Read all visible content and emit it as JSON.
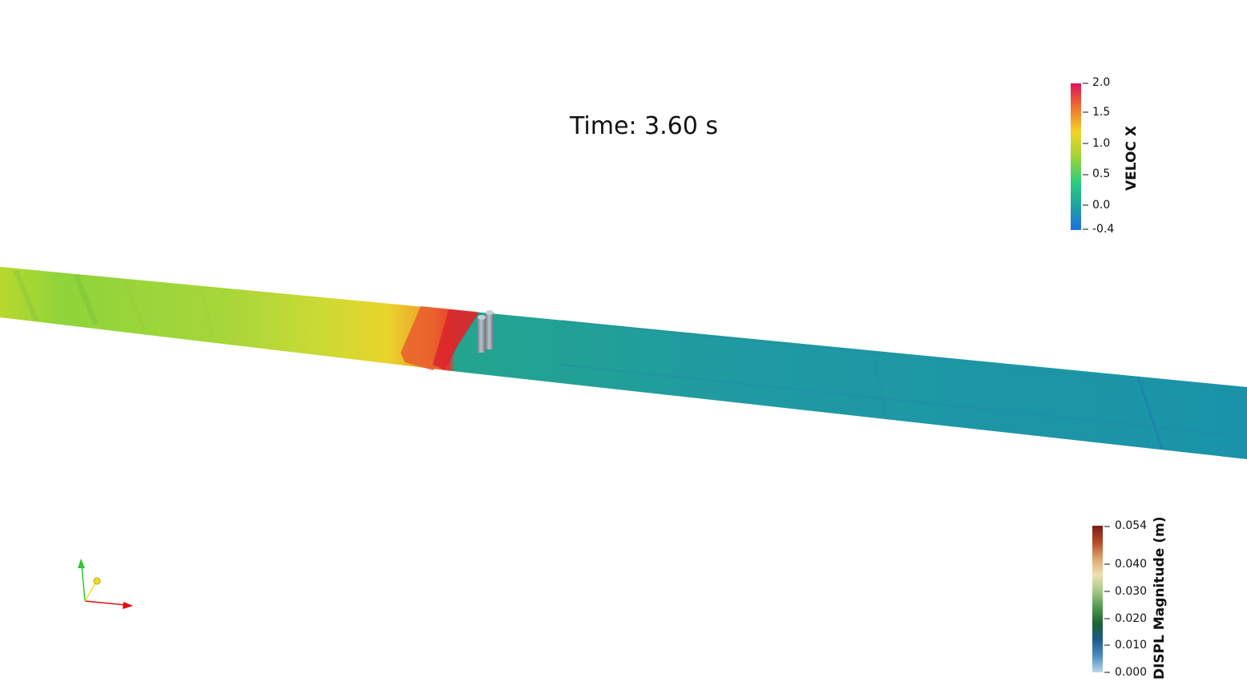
{
  "viewer": {
    "time_label": "Time: 3.60 s"
  },
  "legend_veloc": {
    "title": "VELOC X",
    "ticks": [
      "2.0",
      "1.5",
      "1.0",
      "0.5",
      "0.0",
      "-0.4"
    ],
    "range": [
      -0.4,
      2.0
    ],
    "colors": [
      "#e0115e",
      "#f0742d",
      "#f4d42a",
      "#9fd336",
      "#2fcf79",
      "#1ea4a0",
      "#1f6fe0"
    ]
  },
  "legend_displ": {
    "title": "DISPL Magnitude (m)",
    "ticks": [
      "0.054",
      "0.040",
      "0.030",
      "0.020",
      "0.010",
      "0.000"
    ],
    "range": [
      0.0,
      0.054
    ],
    "colors": [
      "#7a1d14",
      "#b5492a",
      "#dca46b",
      "#eee0b0",
      "#a7c98a",
      "#4f9a4e",
      "#1d6332",
      "#1f5a8a",
      "#4d8ec3",
      "#bcd7ea"
    ]
  },
  "orientation_axes": {
    "icon": "axes-triad-icon",
    "x_color": "#e01010",
    "y_color": "#2ec82e",
    "z_color": "#e8e020"
  }
}
